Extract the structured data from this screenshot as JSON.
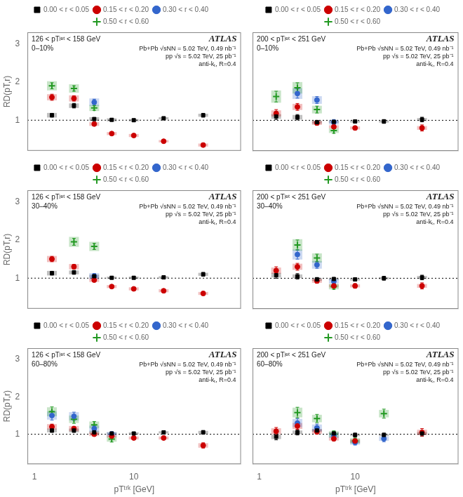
{
  "chart_data": [
    {
      "type": "scatter",
      "log": "x",
      "xlim": [
        0.85,
        120
      ],
      "ylim": [
        0.2,
        3.3
      ],
      "xticks": [
        1,
        10
      ],
      "yticks": [
        1,
        2,
        3
      ],
      "grid": false,
      "legend": "top",
      "tick_labels": "y",
      "ylabel": "RD(pT,r)",
      "hline": 1.0,
      "annotations": [
        "126 < pTʲᵉᵗ < 158 GeV",
        "0–10%",
        "ATLAS",
        "Pb+Pb √sNN = 5.02 TeV, 0.49 nb⁻¹",
        "pp √s = 5.02 TeV, 25 pb⁻¹",
        "anti-kₜ, R=0.4"
      ],
      "series": [
        {
          "name": "0.00 < r < 0.05",
          "color": "#000000",
          "marker": "square",
          "x": [
            1.5,
            2.5,
            4.0,
            6.0,
            10.0,
            20.0,
            50.0
          ],
          "values": [
            1.13,
            1.38,
            1.03,
            1.01,
            1.0,
            1.05,
            1.13
          ],
          "yerr": [
            0.05,
            0.06,
            0.04,
            0.03,
            0.03,
            0.04,
            0.05
          ],
          "sys": [
            0.06,
            0.06,
            0.05,
            0.04,
            0.03,
            0.03,
            0.04
          ]
        },
        {
          "name": "0.15 < r < 0.20",
          "color": "#cc0000",
          "marker": "circle",
          "x": [
            1.5,
            2.5,
            4.0,
            6.0,
            10.0,
            20.0,
            50.0
          ],
          "values": [
            1.6,
            1.57,
            0.9,
            0.65,
            0.6,
            0.45,
            0.35
          ],
          "yerr": [
            0.08,
            0.07,
            0.05,
            0.04,
            0.04,
            0.04,
            0.05
          ],
          "sys": [
            0.08,
            0.08,
            0.05,
            0.04,
            0.04,
            0.03,
            0.04
          ]
        },
        {
          "name": "0.30 < r < 0.40",
          "color": "#3366cc",
          "marker": "circle",
          "x": [
            4.0
          ],
          "values": [
            1.47
          ],
          "yerr": [
            0.08
          ],
          "sys": [
            0.1
          ]
        },
        {
          "name": "0.50 < r < 0.60",
          "color": "#229922",
          "marker": "plus",
          "x": [
            1.5,
            2.5,
            4.0
          ],
          "values": [
            1.9,
            1.83,
            1.32
          ],
          "yerr": [
            0.08,
            0.07,
            0.06
          ],
          "sys": [
            0.12,
            0.11,
            0.08
          ]
        }
      ]
    },
    {
      "type": "scatter",
      "log": "x",
      "xlim": [
        0.85,
        120
      ],
      "ylim": [
        0.2,
        3.3
      ],
      "xticks": [
        1,
        10
      ],
      "yticks": [
        1,
        2,
        3
      ],
      "grid": false,
      "legend": "top",
      "tick_labels": false,
      "hline": 1.0,
      "annotations": [
        "200 < pTʲᵉᵗ < 251 GeV",
        "0–10%",
        "ATLAS",
        "Pb+Pb √sNN = 5.02 TeV, 0.49 nb⁻¹",
        "pp √s = 5.02 TeV, 25 pb⁻¹",
        "anti-kₜ, R=0.4"
      ],
      "series": [
        {
          "name": "0.00 < r < 0.05",
          "color": "#000000",
          "marker": "square",
          "x": [
            1.5,
            2.5,
            4.0,
            6.0,
            10.0,
            20.0,
            50.0
          ],
          "values": [
            1.1,
            1.08,
            0.95,
            0.96,
            0.97,
            0.97,
            1.02
          ],
          "yerr": [
            0.08,
            0.07,
            0.05,
            0.04,
            0.04,
            0.05,
            0.06
          ],
          "sys": [
            0.06,
            0.06,
            0.04,
            0.03,
            0.03,
            0.03,
            0.04
          ]
        },
        {
          "name": "0.15 < r < 0.20",
          "color": "#cc0000",
          "marker": "circle",
          "x": [
            1.5,
            2.5,
            4.0,
            6.0,
            10.0,
            50.0
          ],
          "values": [
            1.18,
            1.35,
            0.93,
            0.83,
            0.8,
            0.8
          ],
          "yerr": [
            0.1,
            0.09,
            0.06,
            0.05,
            0.05,
            0.08
          ],
          "sys": [
            0.08,
            0.08,
            0.05,
            0.04,
            0.04,
            0.05
          ]
        },
        {
          "name": "0.30 < r < 0.40",
          "color": "#3366cc",
          "marker": "circle",
          "x": [
            2.5,
            4.0,
            6.0
          ],
          "values": [
            1.7,
            1.53,
            0.95
          ],
          "yerr": [
            0.12,
            0.09,
            0.07
          ],
          "sys": [
            0.14,
            0.1,
            0.06
          ]
        },
        {
          "name": "0.50 < r < 0.60",
          "color": "#229922",
          "marker": "plus",
          "x": [
            1.5,
            2.5,
            4.0,
            6.0
          ],
          "values": [
            1.62,
            1.85,
            1.28,
            0.73
          ],
          "yerr": [
            0.14,
            0.13,
            0.09,
            0.07
          ],
          "sys": [
            0.16,
            0.15,
            0.1,
            0.06
          ]
        }
      ]
    },
    {
      "type": "scatter",
      "log": "x",
      "xlim": [
        0.85,
        120
      ],
      "ylim": [
        0.2,
        3.3
      ],
      "xticks": [
        1,
        10
      ],
      "yticks": [
        1,
        2,
        3
      ],
      "grid": false,
      "legend": "top",
      "tick_labels": "y",
      "ylabel": "RD(pT,r)",
      "hline": 1.0,
      "annotations": [
        "126 < pTʲᵉᵗ < 158 GeV",
        "30–40%",
        "ATLAS",
        "Pb+Pb √sNN = 5.02 TeV, 0.49 nb⁻¹",
        "pp √s = 5.02 TeV, 25 pb⁻¹",
        "anti-kₜ, R=0.4"
      ],
      "series": [
        {
          "name": "0.00 < r < 0.05",
          "color": "#000000",
          "marker": "square",
          "x": [
            1.5,
            2.5,
            4.0,
            6.0,
            10.0,
            20.0,
            50.0
          ],
          "values": [
            1.13,
            1.15,
            1.05,
            1.01,
            1.01,
            1.02,
            1.1
          ],
          "yerr": [
            0.05,
            0.05,
            0.04,
            0.03,
            0.03,
            0.04,
            0.05
          ],
          "sys": [
            0.06,
            0.05,
            0.04,
            0.03,
            0.03,
            0.03,
            0.04
          ]
        },
        {
          "name": "0.15 < r < 0.20",
          "color": "#cc0000",
          "marker": "circle",
          "x": [
            1.5,
            2.5,
            4.0,
            6.0,
            10.0,
            20.0,
            50.0
          ],
          "values": [
            1.5,
            1.3,
            0.95,
            0.78,
            0.72,
            0.67,
            0.6
          ],
          "yerr": [
            0.07,
            0.06,
            0.05,
            0.04,
            0.04,
            0.05,
            0.05
          ],
          "sys": [
            0.08,
            0.07,
            0.05,
            0.04,
            0.04,
            0.04,
            0.04
          ]
        },
        {
          "name": "0.30 < r < 0.40",
          "color": "#3366cc",
          "marker": "circle",
          "x": [
            4.0
          ],
          "values": [
            1.05
          ],
          "yerr": [
            0.07
          ],
          "sys": [
            0.08
          ]
        },
        {
          "name": "0.50 < r < 0.60",
          "color": "#229922",
          "marker": "plus",
          "x": [
            2.5,
            4.0
          ],
          "values": [
            1.95,
            1.83
          ],
          "yerr": [
            0.09,
            0.08
          ],
          "sys": [
            0.13,
            0.12
          ]
        }
      ]
    },
    {
      "type": "scatter",
      "log": "x",
      "xlim": [
        0.85,
        120
      ],
      "ylim": [
        0.2,
        3.3
      ],
      "xticks": [
        1,
        10
      ],
      "yticks": [
        1,
        2,
        3
      ],
      "grid": false,
      "legend": "top",
      "tick_labels": false,
      "hline": 1.0,
      "annotations": [
        "200 < pTʲᵉᵗ < 251 GeV",
        "30–40%",
        "ATLAS",
        "Pb+Pb √sNN = 5.02 TeV, 0.49 nb⁻¹",
        "pp √s = 5.02 TeV, 25 pb⁻¹",
        "anti-kₜ, R=0.4"
      ],
      "series": [
        {
          "name": "0.00 < r < 0.05",
          "color": "#000000",
          "marker": "square",
          "x": [
            1.5,
            2.5,
            4.0,
            6.0,
            10.0,
            20.0,
            50.0
          ],
          "values": [
            1.08,
            1.05,
            0.97,
            0.98,
            0.97,
            1.0,
            1.02
          ],
          "yerr": [
            0.08,
            0.07,
            0.05,
            0.04,
            0.04,
            0.05,
            0.06
          ],
          "sys": [
            0.06,
            0.05,
            0.04,
            0.03,
            0.03,
            0.03,
            0.04
          ]
        },
        {
          "name": "0.15 < r < 0.20",
          "color": "#cc0000",
          "marker": "circle",
          "x": [
            1.5,
            2.5,
            4.0,
            6.0,
            10.0,
            50.0
          ],
          "values": [
            1.2,
            1.3,
            0.93,
            0.8,
            0.8,
            0.8
          ],
          "yerr": [
            0.1,
            0.09,
            0.06,
            0.06,
            0.06,
            0.08
          ],
          "sys": [
            0.08,
            0.08,
            0.05,
            0.04,
            0.04,
            0.05
          ]
        },
        {
          "name": "0.30 < r < 0.40",
          "color": "#3366cc",
          "marker": "circle",
          "x": [
            2.5,
            4.0,
            6.0
          ],
          "values": [
            1.62,
            1.35,
            0.92
          ],
          "yerr": [
            0.12,
            0.09,
            0.07
          ],
          "sys": [
            0.13,
            0.1,
            0.06
          ]
        },
        {
          "name": "0.50 < r < 0.60",
          "color": "#229922",
          "marker": "plus",
          "x": [
            2.5,
            4.0,
            6.0
          ],
          "values": [
            1.87,
            1.53,
            0.78
          ],
          "yerr": [
            0.13,
            0.1,
            0.07
          ],
          "sys": [
            0.15,
            0.12,
            0.07
          ]
        }
      ]
    },
    {
      "type": "scatter",
      "log": "x",
      "xlim": [
        0.85,
        120
      ],
      "ylim": [
        0.2,
        3.3
      ],
      "xticks": [
        1,
        10
      ],
      "yticks": [
        1,
        2,
        3
      ],
      "grid": false,
      "legend": "top",
      "xlabel": "pTᵗʳᵏ [GeV]",
      "ylabel": "RD(pT,r)",
      "hline": 1.0,
      "annotations": [
        "126 < pTʲᵉᵗ < 158 GeV",
        "60–80%",
        "ATLAS",
        "Pb+Pb √sNN = 5.02 TeV, 0.49 nb⁻¹",
        "pp √s = 5.02 TeV, 25 pb⁻¹",
        "anti-kₜ, R=0.4"
      ],
      "series": [
        {
          "name": "0.00 < r < 0.05",
          "color": "#000000",
          "marker": "square",
          "x": [
            1.5,
            2.5,
            4.0,
            6.0,
            10.0,
            20.0,
            50.0
          ],
          "values": [
            1.1,
            1.1,
            1.05,
            1.02,
            1.02,
            1.05,
            1.05
          ],
          "yerr": [
            0.05,
            0.05,
            0.04,
            0.03,
            0.03,
            0.04,
            0.05
          ],
          "sys": [
            0.05,
            0.05,
            0.04,
            0.03,
            0.03,
            0.03,
            0.04
          ]
        },
        {
          "name": "0.15 < r < 0.20",
          "color": "#cc0000",
          "marker": "circle",
          "x": [
            1.5,
            2.5,
            4.0,
            6.0,
            10.0,
            20.0,
            50.0
          ],
          "values": [
            1.2,
            1.15,
            1.0,
            0.95,
            0.9,
            0.9,
            0.7
          ],
          "yerr": [
            0.07,
            0.06,
            0.05,
            0.04,
            0.04,
            0.05,
            0.07
          ],
          "sys": [
            0.07,
            0.07,
            0.05,
            0.04,
            0.04,
            0.04,
            0.06
          ]
        },
        {
          "name": "0.30 < r < 0.40",
          "color": "#3366cc",
          "marker": "circle",
          "x": [
            1.5,
            2.5,
            4.0,
            6.0
          ],
          "values": [
            1.5,
            1.48,
            1.15,
            1.0
          ],
          "yerr": [
            0.12,
            0.11,
            0.08,
            0.07
          ],
          "sys": [
            0.11,
            0.11,
            0.08,
            0.06
          ]
        },
        {
          "name": "0.50 < r < 0.60",
          "color": "#229922",
          "marker": "plus",
          "x": [
            1.5,
            2.5,
            4.0,
            6.0
          ],
          "values": [
            1.6,
            1.4,
            1.25,
            0.87
          ],
          "yerr": [
            0.13,
            0.11,
            0.09,
            0.08
          ],
          "sys": [
            0.12,
            0.1,
            0.09,
            0.07
          ]
        }
      ]
    },
    {
      "type": "scatter",
      "log": "x",
      "xlim": [
        0.85,
        120
      ],
      "ylim": [
        0.2,
        3.3
      ],
      "xticks": [
        1,
        10
      ],
      "yticks": [
        1,
        2,
        3
      ],
      "grid": false,
      "legend": "top",
      "tick_labels": "x",
      "xlabel": "pTᵗʳᵏ [GeV]",
      "hline": 1.0,
      "annotations": [
        "200 < pTʲᵉᵗ < 251 GeV",
        "60–80%",
        "ATLAS",
        "Pb+Pb √sNN = 5.02 TeV, 0.49 nb⁻¹",
        "pp √s = 5.02 TeV, 25 pb⁻¹",
        "anti-kₜ, R=0.4"
      ],
      "series": [
        {
          "name": "0.00 < r < 0.05",
          "color": "#000000",
          "marker": "square",
          "x": [
            1.5,
            2.5,
            4.0,
            6.0,
            10.0,
            20.0,
            50.0
          ],
          "values": [
            0.93,
            1.05,
            1.1,
            1.02,
            0.98,
            0.98,
            1.02
          ],
          "yerr": [
            0.08,
            0.07,
            0.06,
            0.05,
            0.05,
            0.05,
            0.07
          ],
          "sys": [
            0.06,
            0.05,
            0.04,
            0.03,
            0.03,
            0.03,
            0.04
          ]
        },
        {
          "name": "0.15 < r < 0.20",
          "color": "#cc0000",
          "marker": "circle",
          "x": [
            1.5,
            2.5,
            4.0,
            6.0,
            10.0,
            50.0
          ],
          "values": [
            1.08,
            1.22,
            1.07,
            0.88,
            0.82,
            1.05
          ],
          "yerr": [
            0.1,
            0.09,
            0.07,
            0.06,
            0.06,
            0.1
          ],
          "sys": [
            0.08,
            0.08,
            0.06,
            0.05,
            0.05,
            0.07
          ]
        },
        {
          "name": "0.30 < r < 0.40",
          "color": "#3366cc",
          "marker": "circle",
          "x": [
            2.5,
            4.0,
            6.0,
            10.0,
            20.0
          ],
          "values": [
            1.3,
            1.17,
            0.97,
            0.78,
            0.88
          ],
          "yerr": [
            0.12,
            0.1,
            0.08,
            0.07,
            0.08
          ],
          "sys": [
            0.11,
            0.09,
            0.07,
            0.06,
            0.06
          ]
        },
        {
          "name": "0.50 < r < 0.60",
          "color": "#229922",
          "marker": "plus",
          "x": [
            2.5,
            4.0,
            6.0,
            10.0,
            20.0
          ],
          "values": [
            1.58,
            1.42,
            1.0,
            0.82,
            1.55
          ],
          "yerr": [
            0.14,
            0.11,
            0.09,
            0.08,
            0.12
          ],
          "sys": [
            0.13,
            0.1,
            0.08,
            0.07,
            0.1
          ]
        }
      ]
    }
  ]
}
